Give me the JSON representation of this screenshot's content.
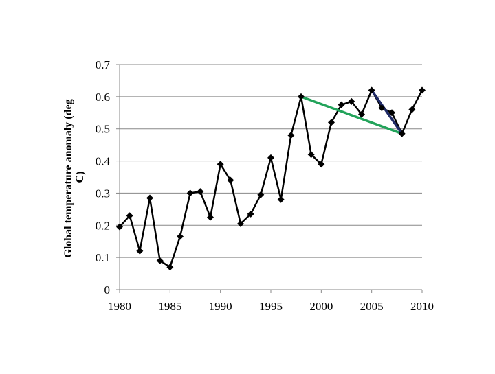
{
  "chart_data": {
    "type": "line",
    "title": "",
    "xlabel": "",
    "ylabel": "Global temperature anomaly (deg C)",
    "ylabel_lines": [
      "Global temperature anomaly (deg",
      "C)"
    ],
    "xlim": [
      1980,
      2010
    ],
    "ylim": [
      0,
      0.7
    ],
    "xticks": [
      1980,
      1985,
      1990,
      1995,
      2000,
      2005,
      2010
    ],
    "yticks": [
      0,
      0.1,
      0.2,
      0.3,
      0.4,
      0.5,
      0.6,
      0.7
    ],
    "xtick_labels": [
      "1980",
      "1985",
      "1990",
      "1995",
      "2000",
      "2005",
      "2010"
    ],
    "ytick_labels": [
      "0",
      "0.1",
      "0.2",
      "0.3",
      "0.4",
      "0.5",
      "0.6",
      "0.7"
    ],
    "grid": "horizontal",
    "legend": "none",
    "series": [
      {
        "color": "#000000",
        "marker": "diamond",
        "x": [
          1980,
          1981,
          1982,
          1983,
          1984,
          1985,
          1986,
          1987,
          1988,
          1989,
          1990,
          1991,
          1992,
          1993,
          1994,
          1995,
          1996,
          1997,
          1998,
          1999,
          2000,
          2001,
          2002,
          2003,
          2004,
          2005,
          2006,
          2007,
          2008,
          2009,
          2010
        ],
        "y": [
          0.195,
          0.23,
          0.12,
          0.285,
          0.09,
          0.07,
          0.165,
          0.3,
          0.305,
          0.225,
          0.39,
          0.34,
          0.205,
          0.235,
          0.295,
          0.41,
          0.28,
          0.48,
          0.6,
          0.42,
          0.39,
          0.52,
          0.575,
          0.585,
          0.545,
          0.62,
          0.565,
          0.55,
          0.485,
          0.56,
          0.62
        ]
      }
    ],
    "trend_lines": [
      {
        "color": "#22a35a",
        "x": [
          1998,
          2008
        ],
        "y": [
          0.6,
          0.485
        ]
      },
      {
        "color": "#1f2a66",
        "x": [
          2005,
          2008
        ],
        "y": [
          0.62,
          0.485
        ]
      }
    ]
  }
}
